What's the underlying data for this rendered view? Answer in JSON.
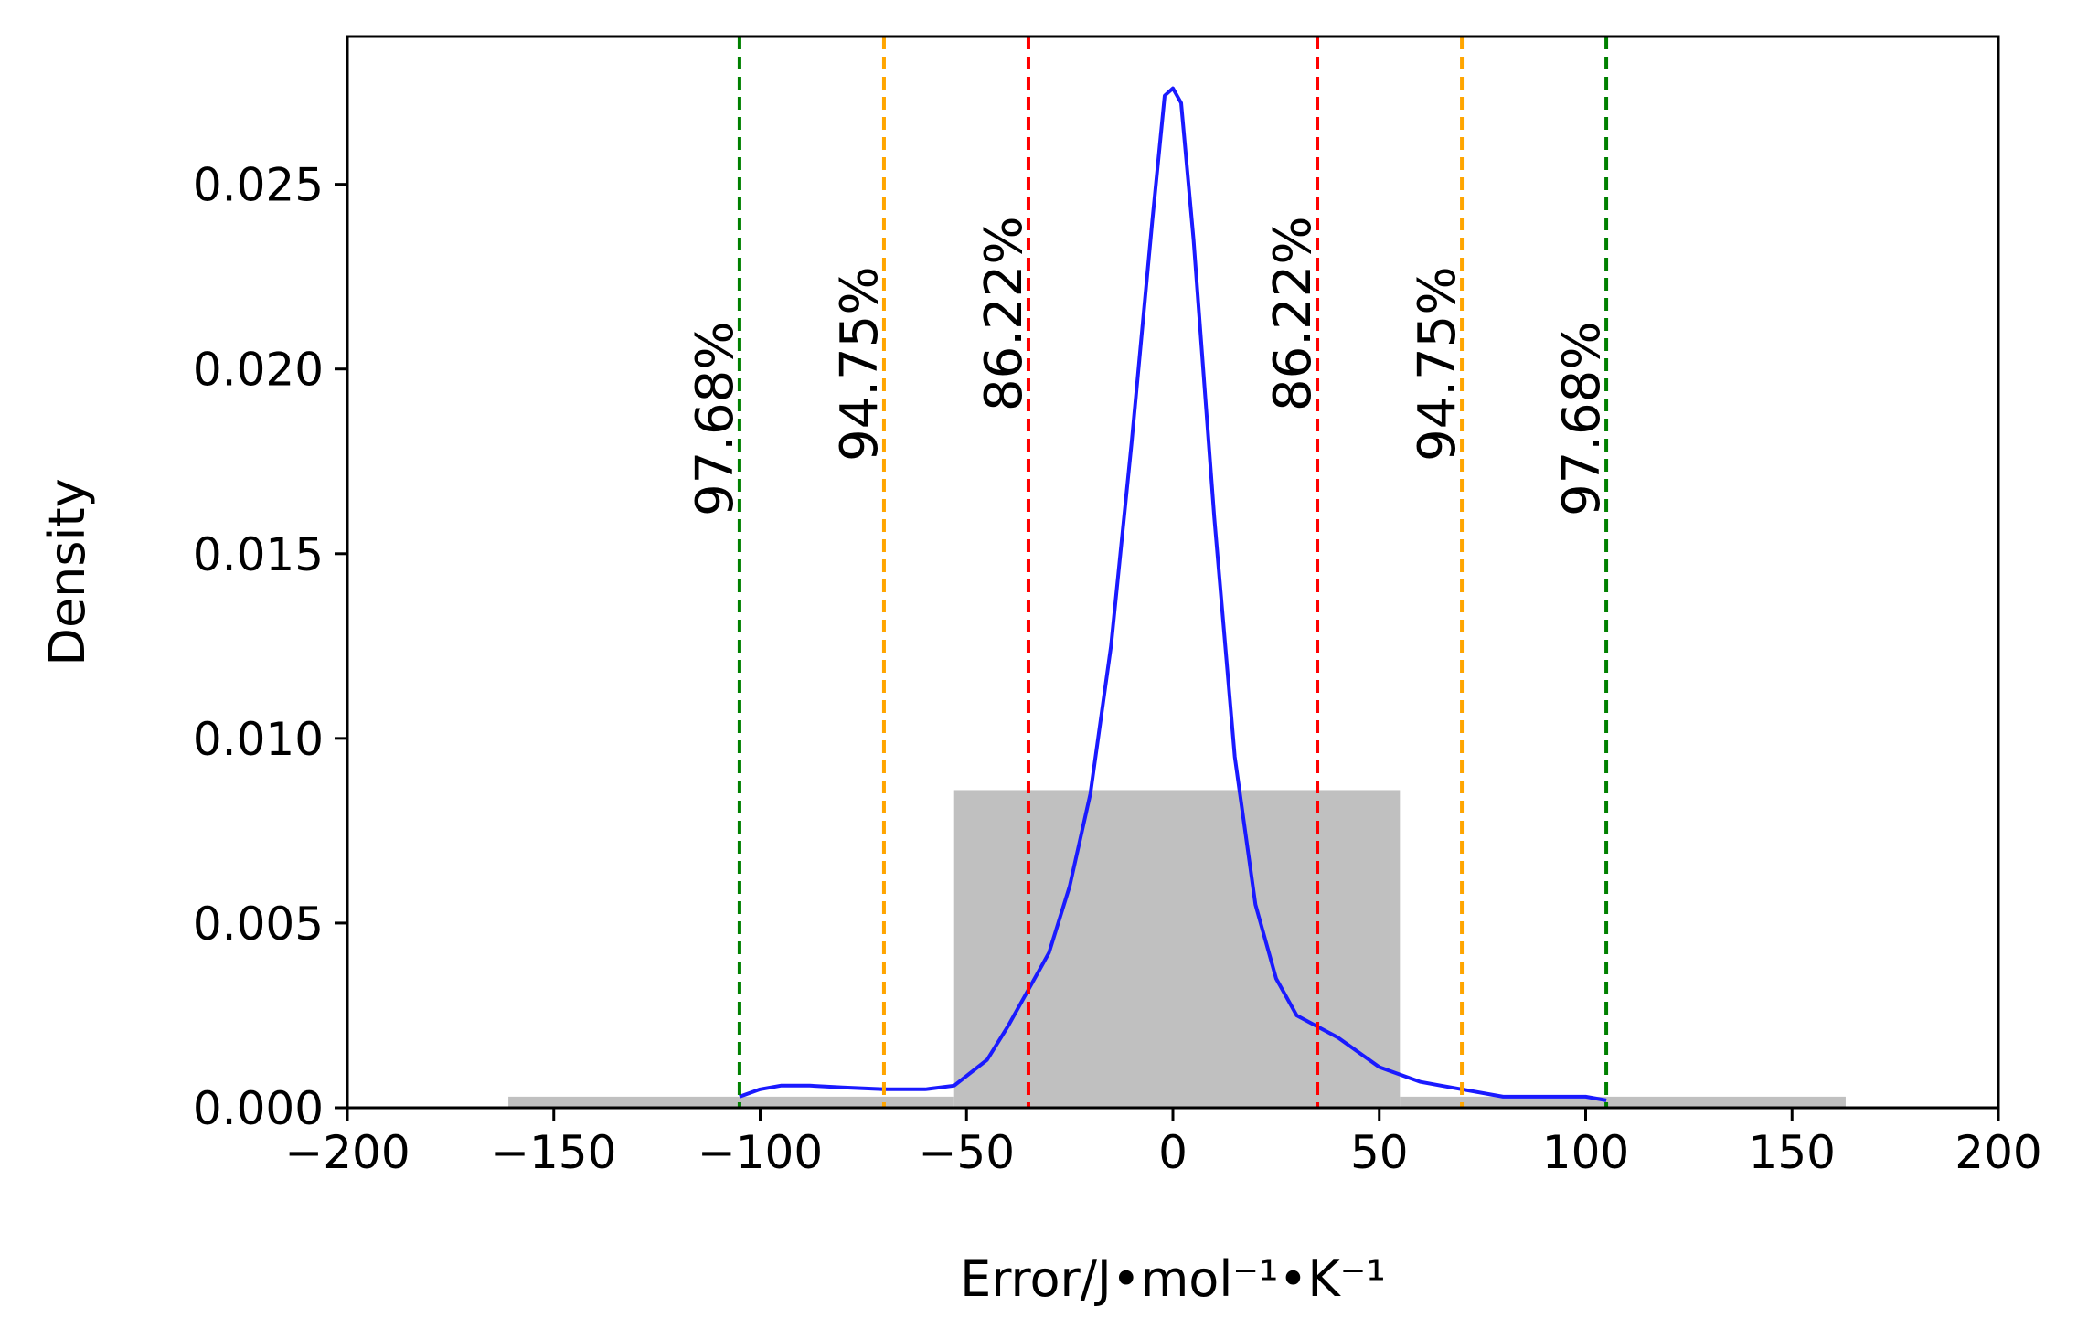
{
  "chart_data": {
    "type": "histogram+density",
    "xlabel": "Error/J•mol⁻¹•K⁻¹",
    "ylabel": "Density",
    "xlim": [
      -200,
      200
    ],
    "ylim": [
      0,
      0.029
    ],
    "x_ticks": [
      -200,
      -150,
      -100,
      -50,
      0,
      50,
      100,
      150,
      200
    ],
    "x_tick_labels": [
      "−200",
      "−150",
      "−100",
      "−50",
      "0",
      "50",
      "100",
      "150",
      "200"
    ],
    "y_ticks": [
      0,
      0.005,
      0.01,
      0.015,
      0.02,
      0.025
    ],
    "y_tick_labels": [
      "0.000",
      "0.005",
      "0.010",
      "0.015",
      "0.020",
      "0.025"
    ],
    "histogram": {
      "color": "#c0c0c0",
      "bins": [
        {
          "x0": -161,
          "x1": -53,
          "value": 0.0003
        },
        {
          "x0": -53,
          "x1": 55,
          "value": 0.0086
        },
        {
          "x0": 55,
          "x1": 163,
          "value": 0.0003
        }
      ]
    },
    "density_curve": {
      "color": "#1a1aff",
      "points": [
        [
          -105,
          0.0003
        ],
        [
          -100,
          0.0005
        ],
        [
          -95,
          0.0006
        ],
        [
          -88,
          0.0006
        ],
        [
          -80,
          0.00055
        ],
        [
          -70,
          0.0005
        ],
        [
          -60,
          0.0005
        ],
        [
          -53,
          0.0006
        ],
        [
          -45,
          0.0013
        ],
        [
          -40,
          0.0022
        ],
        [
          -35,
          0.0032
        ],
        [
          -30,
          0.0042
        ],
        [
          -25,
          0.006
        ],
        [
          -20,
          0.0085
        ],
        [
          -15,
          0.0125
        ],
        [
          -10,
          0.018
        ],
        [
          -5,
          0.024
        ],
        [
          -2,
          0.0274
        ],
        [
          0,
          0.0276
        ],
        [
          2,
          0.0272
        ],
        [
          5,
          0.0235
        ],
        [
          10,
          0.016
        ],
        [
          15,
          0.0095
        ],
        [
          20,
          0.0055
        ],
        [
          25,
          0.0035
        ],
        [
          30,
          0.0025
        ],
        [
          35,
          0.0022
        ],
        [
          40,
          0.0019
        ],
        [
          45,
          0.0015
        ],
        [
          50,
          0.0011
        ],
        [
          55,
          0.0009
        ],
        [
          60,
          0.0007
        ],
        [
          65,
          0.0006
        ],
        [
          70,
          0.0005
        ],
        [
          80,
          0.0003
        ],
        [
          90,
          0.0003
        ],
        [
          95,
          0.0003
        ],
        [
          100,
          0.0003
        ],
        [
          105,
          0.0002
        ]
      ]
    },
    "vertical_lines": [
      {
        "x": -105,
        "label": "97.68%",
        "color": "#008000"
      },
      {
        "x": -70,
        "label": "94.75%",
        "color": "#ffa500"
      },
      {
        "x": -35,
        "label": "86.22%",
        "color": "#ff0000"
      },
      {
        "x": 35,
        "label": "86.22%",
        "color": "#ff0000"
      },
      {
        "x": 70,
        "label": "94.75%",
        "color": "#ffa500"
      },
      {
        "x": 105,
        "label": "97.68%",
        "color": "#008000"
      }
    ],
    "grid": false,
    "legend": "none"
  }
}
